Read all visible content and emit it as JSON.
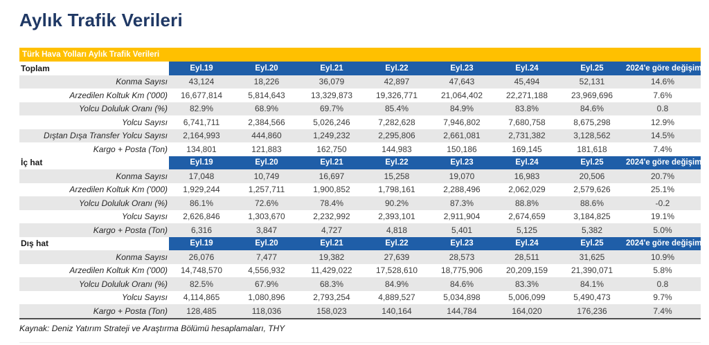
{
  "page_title": "Aylık Trafik Verileri",
  "table": {
    "banner": "Türk Hava Yolları Aylık Trafik Verileri",
    "columns": [
      "Eyl.19",
      "Eyl.20",
      "Eyl.21",
      "Eyl.22",
      "Eyl.23",
      "Eyl.24",
      "Eyl.25",
      "2024'e göre değişim"
    ],
    "sections": [
      {
        "name": "Toplam",
        "rows": [
          {
            "label": "Konma Sayısı",
            "values": [
              "43,124",
              "18,226",
              "36,079",
              "42,897",
              "47,643",
              "45,494",
              "52,131",
              "14.6%"
            ]
          },
          {
            "label": "Arzedilen Koltuk Km ('000)",
            "values": [
              "16,677,814",
              "5,814,643",
              "13,329,873",
              "19,326,771",
              "21,064,402",
              "22,271,188",
              "23,969,696",
              "7.6%"
            ]
          },
          {
            "label": "Yolcu Doluluk Oranı (%)",
            "values": [
              "82.9%",
              "68.9%",
              "69.7%",
              "85.4%",
              "84.9%",
              "83.8%",
              "84.6%",
              "0.8"
            ]
          },
          {
            "label": "Yolcu Sayısı",
            "values": [
              "6,741,711",
              "2,384,566",
              "5,026,246",
              "7,282,628",
              "7,946,802",
              "7,680,758",
              "8,675,298",
              "12.9%"
            ]
          },
          {
            "label": "Dıştan Dışa Transfer Yolcu Sayısı",
            "values": [
              "2,164,993",
              "444,860",
              "1,249,232",
              "2,295,806",
              "2,661,081",
              "2,731,382",
              "3,128,562",
              "14.5%"
            ]
          },
          {
            "label": "Kargo + Posta (Ton)",
            "values": [
              "134,801",
              "121,883",
              "162,750",
              "144,983",
              "150,186",
              "169,145",
              "181,618",
              "7.4%"
            ]
          }
        ]
      },
      {
        "name": "İç hat",
        "rows": [
          {
            "label": "Konma Sayısı",
            "values": [
              "17,048",
              "10,749",
              "16,697",
              "15,258",
              "19,070",
              "16,983",
              "20,506",
              "20.7%"
            ]
          },
          {
            "label": "Arzedilen Koltuk Km ('000)",
            "values": [
              "1,929,244",
              "1,257,711",
              "1,900,852",
              "1,798,161",
              "2,288,496",
              "2,062,029",
              "2,579,626",
              "25.1%"
            ]
          },
          {
            "label": "Yolcu Doluluk Oranı (%)",
            "values": [
              "86.1%",
              "72.6%",
              "78.4%",
              "90.2%",
              "87.3%",
              "88.8%",
              "88.6%",
              "-0.2"
            ]
          },
          {
            "label": "Yolcu Sayısı",
            "values": [
              "2,626,846",
              "1,303,670",
              "2,232,992",
              "2,393,101",
              "2,911,904",
              "2,674,659",
              "3,184,825",
              "19.1%"
            ]
          },
          {
            "label": "Kargo + Posta (Ton)",
            "values": [
              "6,316",
              "3,847",
              "4,727",
              "4,818",
              "5,401",
              "5,125",
              "5,382",
              "5.0%"
            ]
          }
        ]
      },
      {
        "name": "Dış hat",
        "rows": [
          {
            "label": "Konma Sayısı",
            "values": [
              "26,076",
              "7,477",
              "19,382",
              "27,639",
              "28,573",
              "28,511",
              "31,625",
              "10.9%"
            ]
          },
          {
            "label": "Arzedilen Koltuk Km ('000)",
            "values": [
              "14,748,570",
              "4,556,932",
              "11,429,022",
              "17,528,610",
              "18,775,906",
              "20,209,159",
              "21,390,071",
              "5.8%"
            ]
          },
          {
            "label": "Yolcu Doluluk Oranı (%)",
            "values": [
              "82.5%",
              "67.9%",
              "68.3%",
              "84.9%",
              "84.6%",
              "83.3%",
              "84.1%",
              "0.8"
            ]
          },
          {
            "label": "Yolcu Sayısı",
            "values": [
              "4,114,865",
              "1,080,896",
              "2,793,254",
              "4,889,527",
              "5,034,898",
              "5,006,099",
              "5,490,473",
              "9.7%"
            ]
          },
          {
            "label": "Kargo + Posta (Ton)",
            "values": [
              "128,485",
              "118,036",
              "158,023",
              "140,164",
              "144,784",
              "164,020",
              "176,236",
              "7.4%"
            ]
          }
        ]
      }
    ]
  },
  "footer": {
    "source": "Kaynak: Deniz Yatırım Strateji ve Araştırma Bölümü hesaplamaları, THY"
  },
  "colors": {
    "title_navy": "#1F3864",
    "banner_orange": "#FFC000",
    "header_blue": "#1F5EA8",
    "row_stripe_gray": "#E7E7E7",
    "table_bottom_border": "#4d4d4d"
  }
}
